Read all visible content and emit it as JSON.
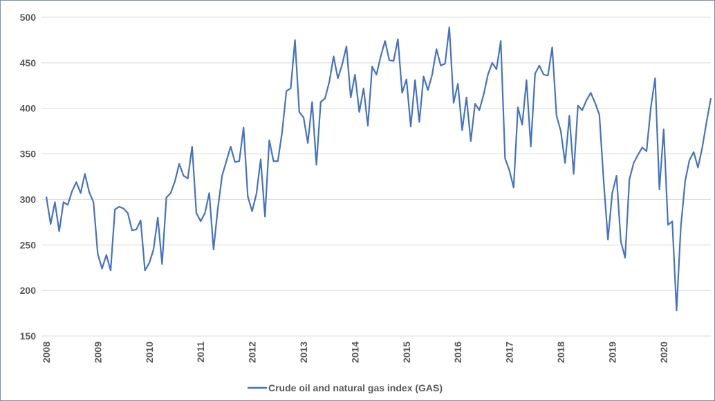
{
  "chart_data": {
    "type": "line",
    "categories": [
      "2008",
      null,
      null,
      null,
      null,
      null,
      null,
      null,
      null,
      null,
      null,
      null,
      "2009",
      null,
      null,
      null,
      null,
      null,
      null,
      null,
      null,
      null,
      null,
      null,
      "2010",
      null,
      null,
      null,
      null,
      null,
      null,
      null,
      null,
      null,
      null,
      null,
      "2011",
      null,
      null,
      null,
      null,
      null,
      null,
      null,
      null,
      null,
      null,
      null,
      "2012",
      null,
      null,
      null,
      null,
      null,
      null,
      null,
      null,
      null,
      null,
      null,
      "2013",
      null,
      null,
      null,
      null,
      null,
      null,
      null,
      null,
      null,
      null,
      null,
      "2014",
      null,
      null,
      null,
      null,
      null,
      null,
      null,
      null,
      null,
      null,
      null,
      "2015",
      null,
      null,
      null,
      null,
      null,
      null,
      null,
      null,
      null,
      null,
      null,
      "2016",
      null,
      null,
      null,
      null,
      null,
      null,
      null,
      null,
      null,
      null,
      null,
      "2017",
      null,
      null,
      null,
      null,
      null,
      null,
      null,
      null,
      null,
      null,
      null,
      "2018",
      null,
      null,
      null,
      null,
      null,
      null,
      null,
      null,
      null,
      null,
      null,
      "2019",
      null,
      null,
      null,
      null,
      null,
      null,
      null,
      null,
      null,
      null,
      null,
      "2020",
      null,
      null,
      null,
      null,
      null,
      null,
      null,
      null,
      null,
      null,
      null
    ],
    "series": [
      {
        "name": "Crude oil and natural gas index (GAS)",
        "color": "#4472c4",
        "values": [
          303,
          273,
          297,
          265,
          297,
          294,
          309,
          319,
          307,
          328,
          308,
          297,
          240,
          224,
          239,
          222,
          289,
          292,
          290,
          285,
          266,
          267,
          277,
          222,
          230,
          245,
          280,
          229,
          302,
          307,
          320,
          339,
          326,
          323,
          358,
          285,
          276,
          285,
          307,
          245,
          290,
          326,
          342,
          358,
          341,
          342,
          379,
          303,
          287,
          306,
          344,
          281,
          365,
          342,
          342,
          374,
          419,
          422,
          475,
          396,
          390,
          362,
          407,
          338,
          407,
          411,
          429,
          457,
          433,
          448,
          468,
          412,
          437,
          396,
          422,
          381,
          446,
          437,
          457,
          474,
          453,
          452,
          476,
          417,
          432,
          380,
          431,
          385,
          435,
          420,
          437,
          465,
          447,
          449,
          489,
          406,
          427,
          376,
          412,
          364,
          405,
          398,
          415,
          437,
          450,
          443,
          474,
          345,
          332,
          313,
          401,
          382,
          431,
          358,
          438,
          447,
          437,
          436,
          467,
          392,
          375,
          340,
          392,
          328,
          403,
          398,
          409,
          417,
          406,
          393,
          320,
          256,
          307,
          326,
          254,
          236,
          322,
          340,
          349,
          357,
          353,
          401,
          433,
          311,
          377,
          272,
          276,
          178,
          270,
          320,
          343,
          352,
          335,
          357,
          385,
          411
        ]
      }
    ],
    "ylim": [
      150,
      500
    ],
    "yticks": [
      150,
      200,
      250,
      300,
      350,
      400,
      450,
      500
    ],
    "grid": true,
    "legend": "bottom"
  }
}
